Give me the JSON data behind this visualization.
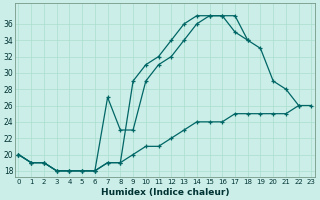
{
  "xlabel": "Humidex (Indice chaleur)",
  "bg_color": "#cceee8",
  "line_color": "#006666",
  "grid_color": "#aaddcc",
  "line1_y": [
    20,
    19,
    19,
    18,
    18,
    18,
    18,
    19,
    19,
    29,
    31,
    32,
    34,
    36,
    37,
    37,
    37,
    35,
    34,
    null,
    null,
    null,
    null,
    null
  ],
  "line2_y": [
    20,
    19,
    19,
    18,
    18,
    18,
    18,
    27,
    23,
    23,
    29,
    31,
    32,
    34,
    36,
    37,
    37,
    37,
    34,
    33,
    29,
    28,
    26,
    null
  ],
  "line3_y": [
    20,
    19,
    19,
    18,
    18,
    18,
    18,
    19,
    19,
    20,
    21,
    21,
    22,
    23,
    24,
    24,
    24,
    25,
    25,
    25,
    25,
    25,
    26,
    26
  ],
  "xlim": [
    -0.3,
    23.3
  ],
  "ylim": [
    17.2,
    38.5
  ],
  "yticks": [
    18,
    20,
    22,
    24,
    26,
    28,
    30,
    32,
    34,
    36
  ],
  "xticks": [
    0,
    1,
    2,
    3,
    4,
    5,
    6,
    7,
    8,
    9,
    10,
    11,
    12,
    13,
    14,
    15,
    16,
    17,
    18,
    19,
    20,
    21,
    22,
    23
  ]
}
